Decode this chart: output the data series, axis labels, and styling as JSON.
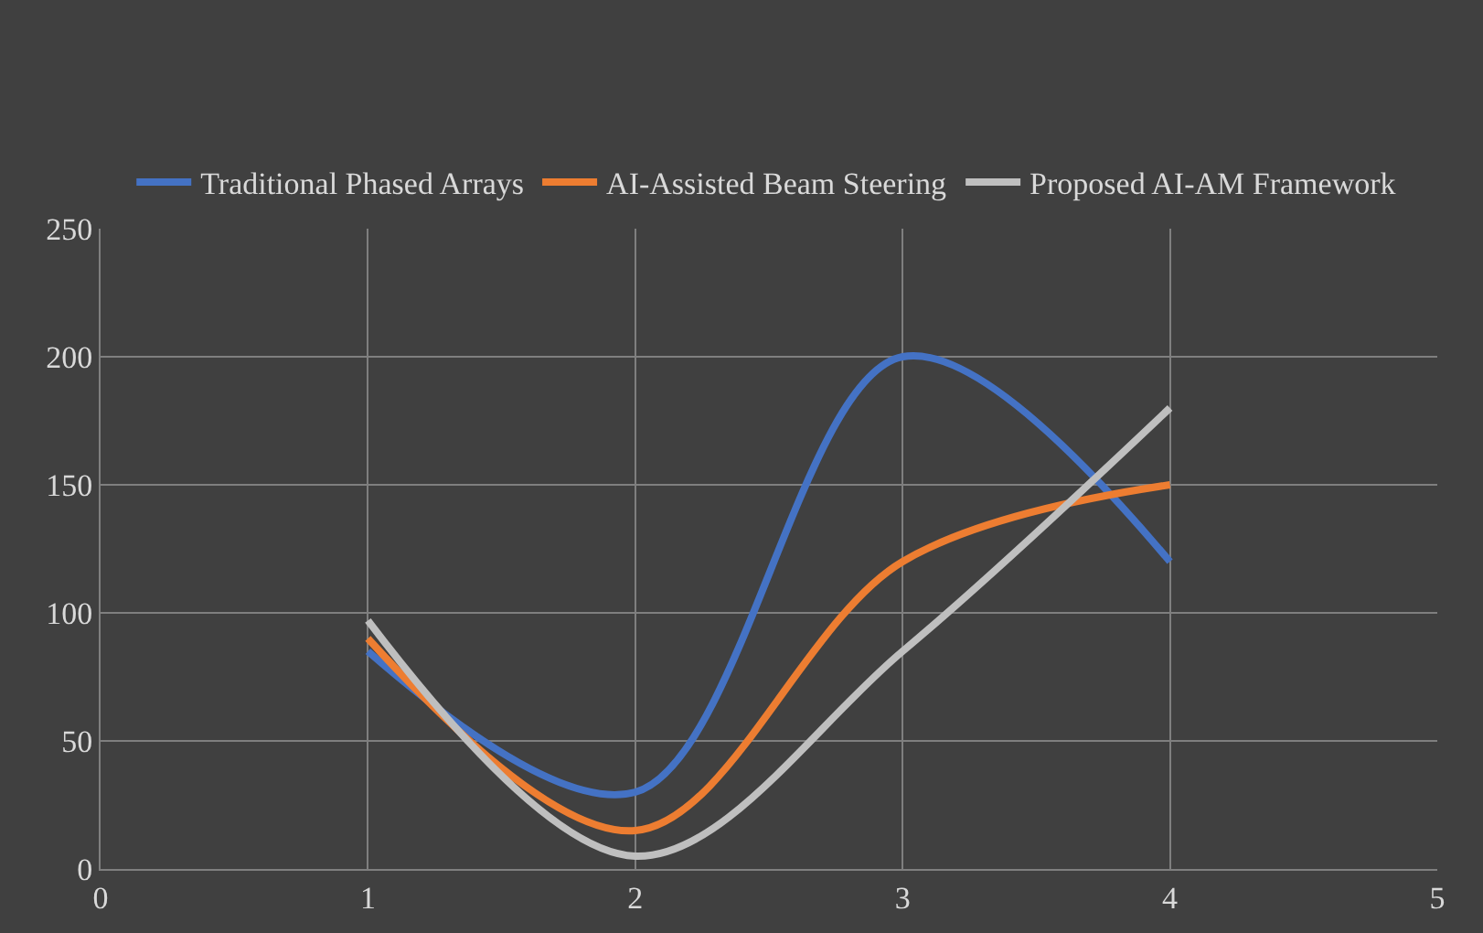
{
  "chart_data": {
    "type": "line",
    "x": [
      1,
      2,
      3,
      4
    ],
    "series": [
      {
        "name": "Traditional Phased Arrays",
        "color": "#4472c4",
        "values": [
          85,
          30,
          200,
          120
        ]
      },
      {
        "name": "AI-Assisted Beam Steering",
        "color": "#ed7d31",
        "values": [
          90,
          15,
          120,
          150
        ]
      },
      {
        "name": "Proposed AI-AM Framework",
        "color": "#bfbfbf",
        "values": [
          97,
          5,
          85,
          180
        ]
      }
    ],
    "xlim": [
      0,
      5
    ],
    "xticks": [
      0,
      1,
      2,
      3,
      4,
      5
    ],
    "ylim": [
      0,
      250
    ],
    "yticks": [
      0,
      50,
      100,
      150,
      200,
      250
    ],
    "grid": true,
    "legend": "top",
    "marker": "none",
    "line_style": "solid"
  }
}
